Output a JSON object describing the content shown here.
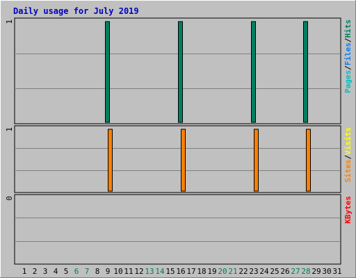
{
  "chart_data": {
    "type": "bar",
    "title": "Daily usage for July 2019",
    "categories": [
      "1",
      "2",
      "3",
      "4",
      "5",
      "6",
      "7",
      "8",
      "9",
      "10",
      "11",
      "12",
      "13",
      "14",
      "15",
      "16",
      "17",
      "18",
      "19",
      "20",
      "21",
      "22",
      "23",
      "24",
      "25",
      "26",
      "27",
      "28",
      "29",
      "30",
      "31"
    ],
    "weekend_days": [
      "6",
      "7",
      "13",
      "14",
      "20",
      "21",
      "27",
      "28"
    ],
    "panels": [
      {
        "id": "hits",
        "ymax_label": "1",
        "ymax": 1,
        "legend": [
          {
            "text": "Pages",
            "color": "#00c0c0"
          },
          {
            "text": "/",
            "color": "#000000"
          },
          {
            "text": "Files",
            "color": "#0080ff"
          },
          {
            "text": "/",
            "color": "#000000"
          },
          {
            "text": "Hits",
            "color": "#008060"
          }
        ],
        "series": [
          {
            "name": "Hits",
            "color": "#008060",
            "values": [
              0,
              0,
              0,
              0,
              0,
              0,
              0,
              0,
              1,
              0,
              0,
              0,
              0,
              0,
              0,
              1,
              0,
              0,
              0,
              0,
              0,
              0,
              1,
              0,
              0,
              0,
              0,
              1,
              0,
              0,
              0
            ]
          }
        ]
      },
      {
        "id": "visits",
        "ymax_label": "1",
        "ymax": 1,
        "legend": [
          {
            "text": "Sites",
            "color": "#ff8000"
          },
          {
            "text": "/",
            "color": "#000000"
          },
          {
            "text": "Visits",
            "color": "#ffff00"
          }
        ],
        "series": [
          {
            "name": "Sites",
            "color": "#ff8000",
            "values": [
              0,
              0,
              0,
              0,
              0,
              0,
              0,
              0,
              1,
              0,
              0,
              0,
              0,
              0,
              0,
              1,
              0,
              0,
              0,
              0,
              0,
              0,
              1,
              0,
              0,
              0,
              0,
              1,
              0,
              0,
              0
            ]
          }
        ]
      },
      {
        "id": "kbytes",
        "ymax_label": "0",
        "ymax": 0,
        "legend": [
          {
            "text": "KBytes",
            "color": "#ff0000"
          }
        ],
        "series": [
          {
            "name": "KBytes",
            "color": "#ff0000",
            "values": [
              0,
              0,
              0,
              0,
              0,
              0,
              0,
              0,
              0,
              0,
              0,
              0,
              0,
              0,
              0,
              0,
              0,
              0,
              0,
              0,
              0,
              0,
              0,
              0,
              0,
              0,
              0,
              0,
              0,
              0,
              0
            ]
          }
        ]
      }
    ],
    "colors": {
      "title": "#0000c0",
      "plot_bg": "#c0c0c0",
      "weekday": "#000000",
      "weekend": "#00804a"
    }
  }
}
